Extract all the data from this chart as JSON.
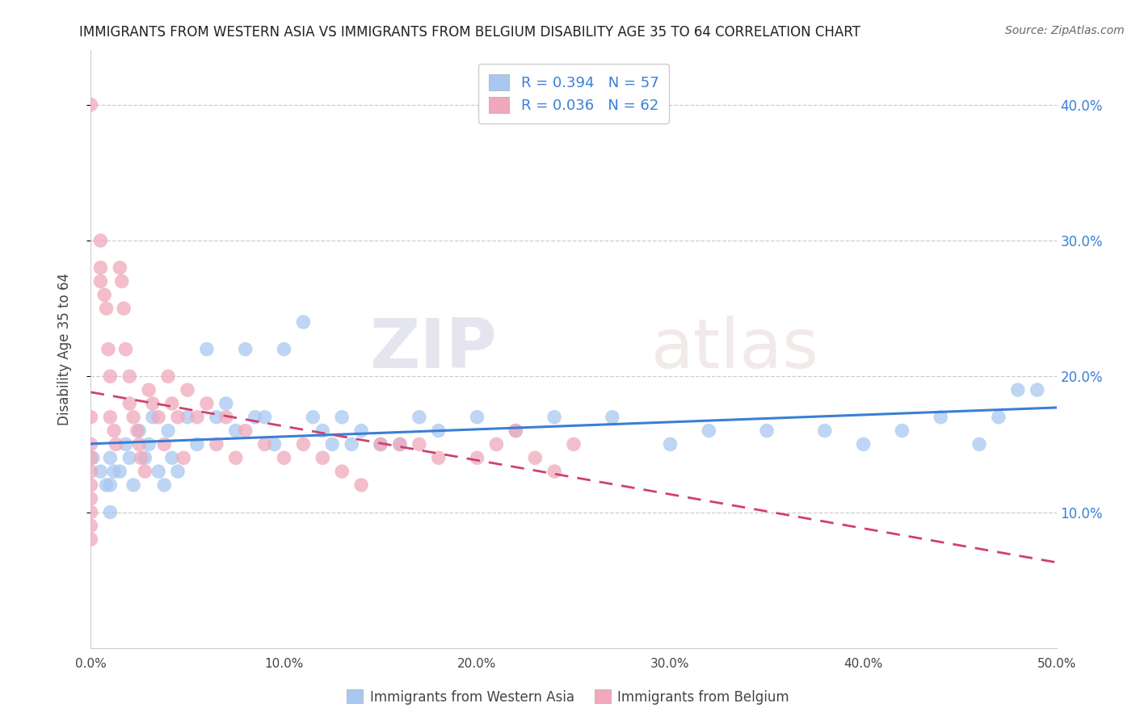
{
  "title": "IMMIGRANTS FROM WESTERN ASIA VS IMMIGRANTS FROM BELGIUM DISABILITY AGE 35 TO 64 CORRELATION CHART",
  "source": "Source: ZipAtlas.com",
  "ylabel": "Disability Age 35 to 64",
  "xlabel_western": "Immigrants from Western Asia",
  "xlabel_belgium": "Immigrants from Belgium",
  "watermark_zip": "ZIP",
  "watermark_atlas": "atlas",
  "xlim": [
    0.0,
    0.5
  ],
  "ylim": [
    0.0,
    0.44
  ],
  "xticks": [
    0.0,
    0.1,
    0.2,
    0.3,
    0.4,
    0.5
  ],
  "yticks": [
    0.1,
    0.2,
    0.3,
    0.4
  ],
  "xtick_labels": [
    "0.0%",
    "10.0%",
    "20.0%",
    "30.0%",
    "40.0%",
    "50.0%"
  ],
  "ytick_labels": [
    "10.0%",
    "20.0%",
    "30.0%",
    "40.0%"
  ],
  "color_western": "#a8c8f0",
  "color_belgium": "#f0a8bc",
  "line_color_western": "#3a7fd5",
  "line_color_belgium": "#d04070",
  "R_western": 0.394,
  "N_western": 57,
  "R_belgium": 0.036,
  "N_belgium": 62,
  "legend_text_color": "#3a7fd5",
  "western_x": [
    0.001,
    0.005,
    0.008,
    0.01,
    0.01,
    0.01,
    0.012,
    0.015,
    0.018,
    0.02,
    0.022,
    0.025,
    0.028,
    0.03,
    0.032,
    0.035,
    0.038,
    0.04,
    0.042,
    0.045,
    0.05,
    0.055,
    0.06,
    0.065,
    0.07,
    0.075,
    0.08,
    0.085,
    0.09,
    0.095,
    0.1,
    0.11,
    0.115,
    0.12,
    0.125,
    0.13,
    0.135,
    0.14,
    0.15,
    0.16,
    0.17,
    0.18,
    0.2,
    0.22,
    0.24,
    0.27,
    0.3,
    0.32,
    0.35,
    0.38,
    0.4,
    0.42,
    0.44,
    0.46,
    0.47,
    0.48,
    0.49
  ],
  "western_y": [
    0.14,
    0.13,
    0.12,
    0.14,
    0.12,
    0.1,
    0.13,
    0.13,
    0.15,
    0.14,
    0.12,
    0.16,
    0.14,
    0.15,
    0.17,
    0.13,
    0.12,
    0.16,
    0.14,
    0.13,
    0.17,
    0.15,
    0.22,
    0.17,
    0.18,
    0.16,
    0.22,
    0.17,
    0.17,
    0.15,
    0.22,
    0.24,
    0.17,
    0.16,
    0.15,
    0.17,
    0.15,
    0.16,
    0.15,
    0.15,
    0.17,
    0.16,
    0.17,
    0.16,
    0.17,
    0.17,
    0.15,
    0.16,
    0.16,
    0.16,
    0.15,
    0.16,
    0.17,
    0.15,
    0.17,
    0.19,
    0.19
  ],
  "belgium_x": [
    0.0,
    0.0,
    0.0,
    0.0,
    0.0,
    0.0,
    0.0,
    0.0,
    0.0,
    0.0,
    0.005,
    0.005,
    0.005,
    0.007,
    0.008,
    0.009,
    0.01,
    0.01,
    0.012,
    0.013,
    0.015,
    0.016,
    0.017,
    0.018,
    0.02,
    0.02,
    0.022,
    0.024,
    0.025,
    0.026,
    0.028,
    0.03,
    0.032,
    0.035,
    0.038,
    0.04,
    0.042,
    0.045,
    0.048,
    0.05,
    0.055,
    0.06,
    0.065,
    0.07,
    0.075,
    0.08,
    0.09,
    0.1,
    0.11,
    0.12,
    0.13,
    0.14,
    0.15,
    0.16,
    0.17,
    0.18,
    0.2,
    0.21,
    0.22,
    0.23,
    0.24,
    0.25
  ],
  "belgium_y": [
    0.4,
    0.17,
    0.15,
    0.14,
    0.13,
    0.12,
    0.11,
    0.1,
    0.09,
    0.08,
    0.3,
    0.28,
    0.27,
    0.26,
    0.25,
    0.22,
    0.2,
    0.17,
    0.16,
    0.15,
    0.28,
    0.27,
    0.25,
    0.22,
    0.2,
    0.18,
    0.17,
    0.16,
    0.15,
    0.14,
    0.13,
    0.19,
    0.18,
    0.17,
    0.15,
    0.2,
    0.18,
    0.17,
    0.14,
    0.19,
    0.17,
    0.18,
    0.15,
    0.17,
    0.14,
    0.16,
    0.15,
    0.14,
    0.15,
    0.14,
    0.13,
    0.12,
    0.15,
    0.15,
    0.15,
    0.14,
    0.14,
    0.15,
    0.16,
    0.14,
    0.13,
    0.15
  ]
}
